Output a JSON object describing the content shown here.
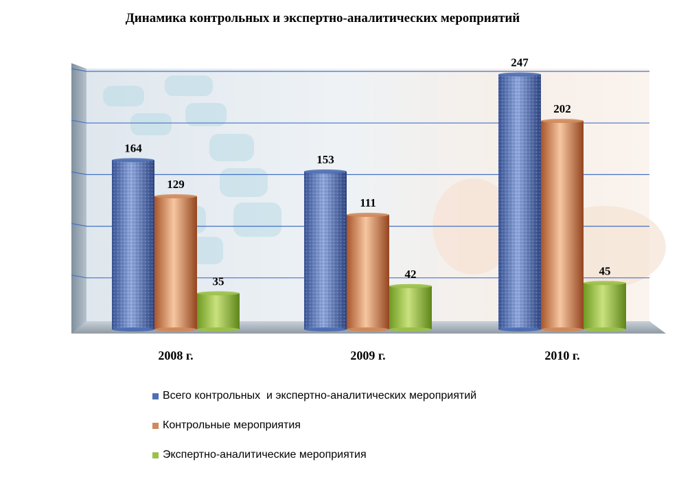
{
  "chart_data": {
    "type": "bar",
    "title": "Динамика контрольных и экспертно-аналитических мероприятий",
    "categories": [
      "2008 г.",
      "2009 г.",
      "2010 г."
    ],
    "series": [
      {
        "name": "Всего контрольных  и экспертно-аналитических мероприятий",
        "values": [
          164,
          153,
          247
        ],
        "color": "#4f6fb3"
      },
      {
        "name": "Контрольные мероприятия",
        "values": [
          129,
          111,
          202
        ],
        "color": "#d0895b"
      },
      {
        "name": "Экспертно-аналитические мероприятия",
        "values": [
          35,
          42,
          45
        ],
        "color": "#9bc04a"
      }
    ],
    "xlabel": "",
    "ylabel": "",
    "ylim": [
      0,
      250
    ],
    "grid": true,
    "legend_position": "bottom"
  }
}
